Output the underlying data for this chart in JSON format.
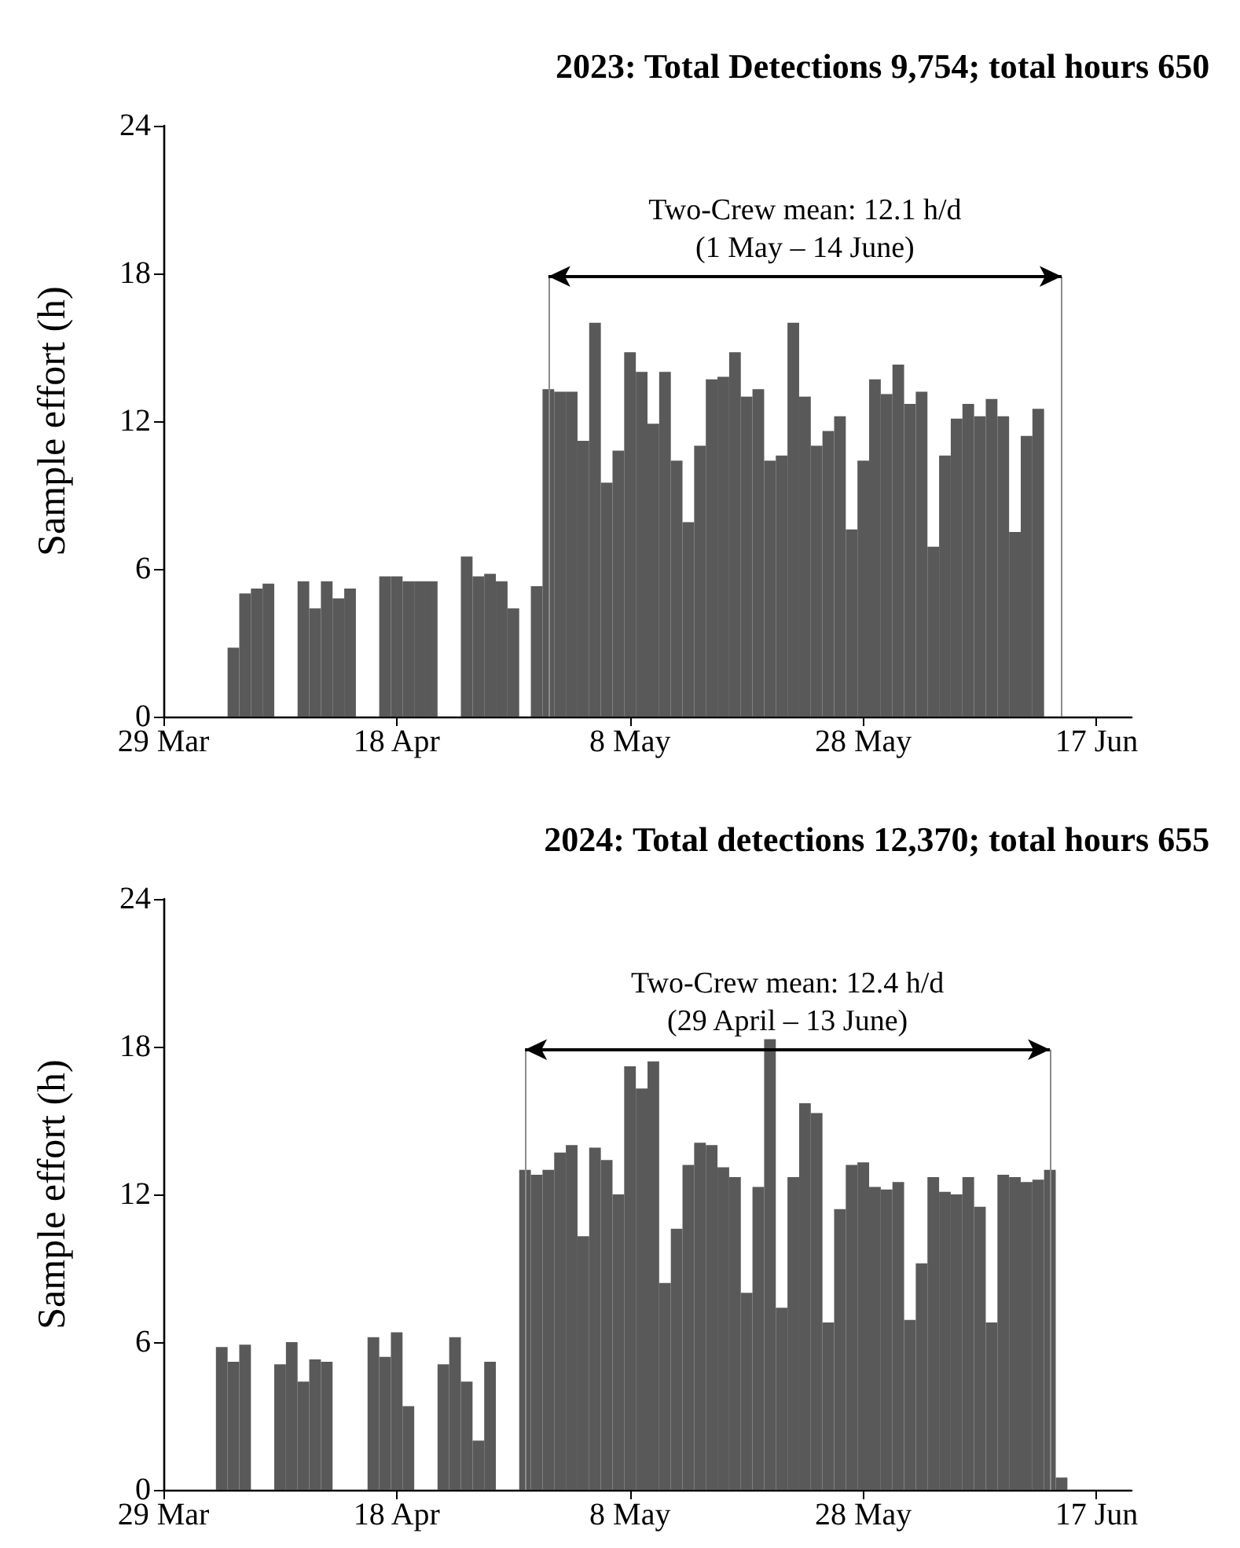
{
  "chart_data": [
    {
      "type": "bar",
      "title": "2023: Total Detections 9,754; total hours 650",
      "ylabel": "Sample effort (h)",
      "x": [
        "--04-04",
        "--04-05",
        "--04-06",
        "--04-07",
        "--04-10",
        "--04-11",
        "--04-12",
        "--04-13",
        "--04-14",
        "--04-17",
        "--04-18",
        "--04-19",
        "--04-20",
        "--04-21",
        "--04-24",
        "--04-25",
        "--04-26",
        "--04-27",
        "--04-28",
        "--04-30",
        "--05-01",
        "--05-02",
        "--05-03",
        "--05-04",
        "--05-05",
        "--05-06",
        "--05-07",
        "--05-08",
        "--05-09",
        "--05-10",
        "--05-11",
        "--05-12",
        "--05-13",
        "--05-14",
        "--05-15",
        "--05-16",
        "--05-17",
        "--05-18",
        "--05-19",
        "--05-20",
        "--05-21",
        "--05-22",
        "--05-23",
        "--05-24",
        "--05-25",
        "--05-26",
        "--05-27",
        "--05-28",
        "--05-29",
        "--05-30",
        "--05-31",
        "--06-01",
        "--06-02",
        "--06-03",
        "--06-04",
        "--06-05",
        "--06-06",
        "--06-07",
        "--06-08",
        "--06-09",
        "--06-10",
        "--06-11",
        "--06-12"
      ],
      "values": [
        2.8,
        5.0,
        5.2,
        5.4,
        5.5,
        4.4,
        5.5,
        4.8,
        5.2,
        5.7,
        5.7,
        5.5,
        5.5,
        5.5,
        6.5,
        5.7,
        5.8,
        5.5,
        4.4,
        5.3,
        13.3,
        13.2,
        13.2,
        11.2,
        16.0,
        9.5,
        10.8,
        14.8,
        14.0,
        11.9,
        14.0,
        10.4,
        7.9,
        11.0,
        13.7,
        13.8,
        14.8,
        13.0,
        13.3,
        10.4,
        10.6,
        16.0,
        13.0,
        11.0,
        11.6,
        12.2,
        7.6,
        10.4,
        13.7,
        13.1,
        14.3,
        12.7,
        13.2,
        6.9,
        10.6,
        12.1,
        12.7,
        12.2,
        12.9,
        12.2,
        7.5,
        11.4,
        12.5
      ],
      "color": "#595959",
      "xlim": [
        "--03-29",
        "--06-20"
      ],
      "xticks": [
        {
          "value": "--03-29",
          "label": "29 Mar"
        },
        {
          "value": "--04-18",
          "label": "18 Apr"
        },
        {
          "value": "--05-08",
          "label": "8 May"
        },
        {
          "value": "--05-28",
          "label": "28 May"
        },
        {
          "value": "--06-17",
          "label": "17 Jun"
        }
      ],
      "ylim": [
        0,
        24
      ],
      "yticks": [
        0,
        6,
        12,
        18,
        24
      ],
      "ref_lines": [
        {
          "axis": "x",
          "value": "--05-01",
          "color": "#8c8c8c"
        },
        {
          "axis": "x",
          "value": "--06-14",
          "color": "#8c8c8c"
        }
      ],
      "annotations": [
        "Two-Crew mean: 12.1 h/d\n(1 May – 14 June)"
      ]
    },
    {
      "type": "bar",
      "title": "2024: Total detections 12,370; total hours 655",
      "ylabel": "Sample effort (h)",
      "x": [
        "--04-03",
        "--04-04",
        "--04-05",
        "--04-08",
        "--04-09",
        "--04-10",
        "--04-11",
        "--04-12",
        "--04-16",
        "--04-17",
        "--04-18",
        "--04-19",
        "--04-22",
        "--04-23",
        "--04-24",
        "--04-25",
        "--04-26",
        "--04-29",
        "--04-30",
        "--05-01",
        "--05-02",
        "--05-03",
        "--05-04",
        "--05-05",
        "--05-06",
        "--05-07",
        "--05-08",
        "--05-09",
        "--05-10",
        "--05-11",
        "--05-12",
        "--05-13",
        "--05-14",
        "--05-15",
        "--05-16",
        "--05-17",
        "--05-18",
        "--05-19",
        "--05-20",
        "--05-21",
        "--05-22",
        "--05-23",
        "--05-24",
        "--05-25",
        "--05-26",
        "--05-27",
        "--05-28",
        "--05-29",
        "--05-30",
        "--05-31",
        "--06-01",
        "--06-02",
        "--06-03",
        "--06-04",
        "--06-05",
        "--06-06",
        "--06-07",
        "--06-08",
        "--06-09",
        "--06-10",
        "--06-11",
        "--06-12",
        "--06-13",
        "--06-14"
      ],
      "values": [
        5.8,
        5.2,
        5.9,
        5.1,
        6.0,
        4.4,
        5.3,
        5.2,
        6.2,
        5.4,
        6.4,
        3.4,
        5.1,
        6.2,
        4.4,
        2.0,
        5.2,
        13.0,
        12.8,
        13.0,
        13.7,
        14.0,
        10.3,
        13.9,
        13.4,
        12.0,
        17.2,
        16.3,
        17.4,
        8.4,
        10.6,
        13.2,
        14.1,
        14.0,
        13.1,
        12.7,
        8.0,
        12.3,
        18.3,
        7.4,
        12.7,
        15.7,
        15.3,
        6.8,
        11.4,
        13.2,
        13.3,
        12.3,
        12.2,
        12.5,
        6.9,
        9.2,
        12.7,
        12.1,
        12.0,
        12.7,
        11.5,
        6.8,
        12.8,
        12.7,
        12.5,
        12.6,
        13.0,
        0.5
      ],
      "color": "#595959",
      "xlim": [
        "--03-29",
        "--06-20"
      ],
      "xticks": [
        {
          "value": "--03-29",
          "label": "29 Mar"
        },
        {
          "value": "--04-18",
          "label": "18 Apr"
        },
        {
          "value": "--05-08",
          "label": "8 May"
        },
        {
          "value": "--05-28",
          "label": "28 May"
        },
        {
          "value": "--06-17",
          "label": "17 Jun"
        }
      ],
      "ylim": [
        0,
        24
      ],
      "yticks": [
        0,
        6,
        12,
        18,
        24
      ],
      "ref_lines": [
        {
          "axis": "x",
          "value": "--04-29",
          "color": "#8c8c8c"
        },
        {
          "axis": "x",
          "value": "--06-13",
          "color": "#8c8c8c"
        }
      ],
      "annotations": [
        "Two-Crew mean: 12.4 h/d\n(29 April – 13 June)"
      ]
    }
  ]
}
